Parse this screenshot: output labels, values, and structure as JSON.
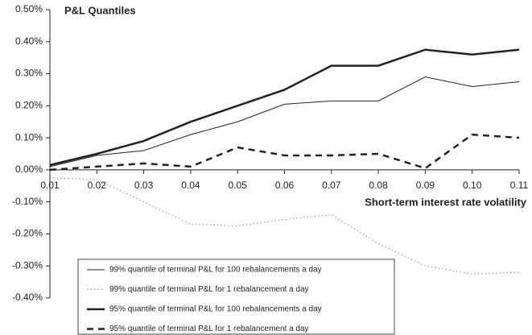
{
  "chart_data": {
    "type": "line",
    "title": "P&L Quantiles",
    "x_label": "Short-term interest rate volatility",
    "x": [
      0.01,
      0.02,
      0.03,
      0.04,
      0.05,
      0.06,
      0.07,
      0.08,
      0.09,
      0.1,
      0.11
    ],
    "xlim": [
      0.01,
      0.11
    ],
    "xticks": [
      0.01,
      0.02,
      0.03,
      0.04,
      0.05,
      0.06,
      0.07,
      0.08,
      0.09,
      {
        "value": 0.1,
        "label": "0.10"
      },
      0.11
    ],
    "ylim": [
      -0.4,
      0.5
    ],
    "yticks": [
      {
        "value": -0.4,
        "label": "-0.40%"
      },
      {
        "value": -0.3,
        "label": "-0.30%"
      },
      {
        "value": -0.2,
        "label": "-0.20%"
      },
      {
        "value": -0.1,
        "label": "-0.10%"
      },
      {
        "value": 0,
        "label": "0.00%"
      },
      {
        "value": 0.1,
        "label": "0.10%"
      },
      {
        "value": 0.2,
        "label": "0.20%"
      },
      {
        "value": 0.3,
        "label": "0.30%"
      },
      {
        "value": 0.4,
        "label": "0.40%"
      },
      {
        "value": 0.5,
        "label": "0.50%"
      }
    ],
    "series": [
      {
        "name": "99% quantile of  terminal P&L for 100 rebalancements a day",
        "color": "#222",
        "line_style": "solid",
        "line_width": 1,
        "values": [
          0.01,
          0.045,
          0.06,
          0.11,
          0.15,
          0.205,
          0.215,
          0.215,
          0.29,
          0.26,
          0.275
        ]
      },
      {
        "name": "99% quantile of terminal P&L for 1 rebalancement a day",
        "color": "#888",
        "line_style": "dotted",
        "line_width": 1,
        "values": [
          -0.025,
          -0.03,
          -0.1,
          -0.17,
          -0.175,
          -0.155,
          -0.14,
          -0.23,
          -0.3,
          -0.325,
          -0.32
        ]
      },
      {
        "name": "95% quantile of  terminal P&L for 100 rebalancements a day",
        "color": "#222",
        "line_style": "solid",
        "line_width": 2.5,
        "values": [
          0.015,
          0.05,
          0.09,
          0.15,
          0.2,
          0.25,
          0.325,
          0.325,
          0.375,
          0.36,
          0.375
        ]
      },
      {
        "name": "95% quantile of terminal P&L for 1 rebalancement a day",
        "color": "#222",
        "line_style": "dashed",
        "line_width": 2.5,
        "values": [
          0,
          0.01,
          0.02,
          0.01,
          0.07,
          0.045,
          0.045,
          0.05,
          0.005,
          0.11,
          0.1
        ]
      }
    ]
  }
}
